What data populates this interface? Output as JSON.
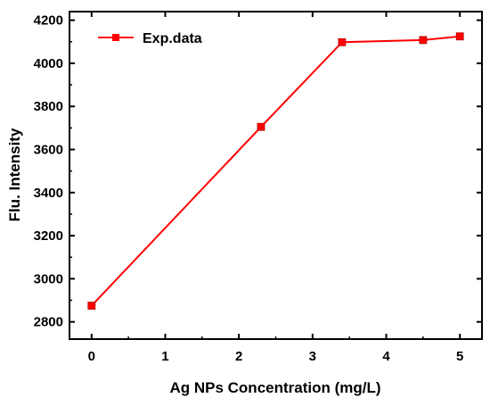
{
  "chart_data": {
    "type": "line",
    "xlabel": "Ag NPs Concentration (mg/L)",
    "ylabel": "Flu. Intensity",
    "xlim": [
      -0.3,
      5.3
    ],
    "ylim": [
      2720,
      4240
    ],
    "xticks": [
      0,
      1,
      2,
      3,
      4,
      5
    ],
    "yticks": [
      2800,
      3000,
      3200,
      3400,
      3600,
      3800,
      4000,
      4200
    ],
    "grid": false,
    "legend_position": "top-left",
    "series": [
      {
        "name": "Exp.data",
        "color": "#ff0000",
        "marker": "square",
        "x": [
          0,
          2.3,
          3.4,
          4.5,
          5.0
        ],
        "y": [
          2875,
          3705,
          4098,
          4108,
          4125
        ]
      }
    ]
  }
}
